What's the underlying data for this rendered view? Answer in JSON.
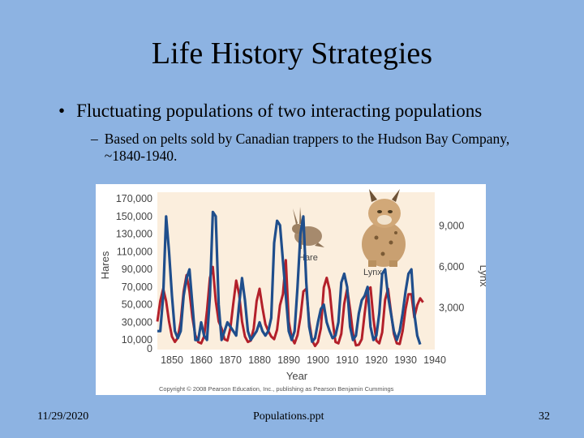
{
  "slide": {
    "title": "Life History Strategies",
    "bullet": "Fluctuating populations of two interacting populations",
    "bullet_marker": "•",
    "sub_marker": "–",
    "sub_bullet": "Based on pelts sold by Canadian trappers to the Hudson Bay Company, ~1840-1940."
  },
  "footer": {
    "date": "11/29/2020",
    "file": "Populations.ppt",
    "page": "32"
  },
  "colors": {
    "background": "#8db3e2",
    "hare": "#1f4e8c",
    "lynx": "#b3202a"
  },
  "chart_data": {
    "type": "line",
    "xlabel": "Year",
    "ylabel_left": "Hares",
    "ylabel_right": "Lynx",
    "xlim": [
      1845,
      1940
    ],
    "ylim_left": [
      0,
      170000
    ],
    "ylim_right": [
      0,
      11000
    ],
    "x_ticks": [
      1850,
      1860,
      1870,
      1880,
      1890,
      1900,
      1910,
      1920,
      1930,
      1940
    ],
    "y_ticks_left": [
      0,
      10000,
      30000,
      50000,
      70000,
      90000,
      110000,
      130000,
      150000,
      170000
    ],
    "y_tick_labels_left": [
      "0",
      "10,000",
      "30,000",
      "50,000",
      "70,000",
      "90,000",
      "110,000",
      "130,000",
      "150,000",
      "170,000"
    ],
    "y_ticks_right": [
      3000,
      6000,
      9000
    ],
    "y_tick_labels_right": [
      "3,000",
      "6,000",
      "9,000"
    ],
    "series": [
      {
        "name": "Hare",
        "axis": "left",
        "color": "#1f4e8c",
        "x": [
          1845,
          1846,
          1847,
          1848,
          1849,
          1850,
          1851,
          1852,
          1853,
          1854,
          1855,
          1856,
          1857,
          1858,
          1859,
          1860,
          1861,
          1862,
          1863,
          1864,
          1865,
          1866,
          1867,
          1868,
          1869,
          1870,
          1871,
          1872,
          1873,
          1874,
          1875,
          1876,
          1877,
          1878,
          1879,
          1880,
          1881,
          1882,
          1883,
          1884,
          1885,
          1886,
          1887,
          1888,
          1889,
          1890,
          1891,
          1892,
          1893,
          1894,
          1895,
          1896,
          1897,
          1898,
          1899,
          1900,
          1901,
          1902,
          1903,
          1904,
          1905,
          1906,
          1907,
          1908,
          1909,
          1910,
          1911,
          1912,
          1913,
          1914,
          1915,
          1916,
          1917,
          1918,
          1919,
          1920,
          1921,
          1922,
          1923,
          1924,
          1925,
          1926,
          1927,
          1928,
          1929,
          1930,
          1931,
          1932,
          1933,
          1934,
          1935
        ],
        "y": [
          20000,
          20000,
          60000,
          150000,
          110000,
          60000,
          20000,
          12000,
          20000,
          60000,
          80000,
          90000,
          50000,
          10000,
          10000,
          30000,
          15000,
          10000,
          60000,
          155000,
          150000,
          50000,
          10000,
          20000,
          30000,
          25000,
          20000,
          15000,
          50000,
          80000,
          55000,
          20000,
          10000,
          15000,
          20000,
          30000,
          20000,
          15000,
          20000,
          35000,
          120000,
          145000,
          140000,
          100000,
          60000,
          20000,
          10000,
          20000,
          70000,
          130000,
          150000,
          75000,
          25000,
          8000,
          12000,
          30000,
          45000,
          50000,
          30000,
          20000,
          12000,
          15000,
          30000,
          75000,
          85000,
          70000,
          25000,
          10000,
          15000,
          40000,
          55000,
          60000,
          70000,
          25000,
          10000,
          15000,
          40000,
          85000,
          90000,
          60000,
          40000,
          20000,
          10000,
          20000,
          40000,
          65000,
          85000,
          90000,
          40000,
          15000,
          5000
        ]
      },
      {
        "name": "Lynx",
        "axis": "right",
        "color": "#b3202a",
        "x": [
          1845,
          1846,
          1847,
          1848,
          1849,
          1850,
          1851,
          1852,
          1853,
          1854,
          1855,
          1856,
          1857,
          1858,
          1859,
          1860,
          1861,
          1862,
          1863,
          1864,
          1865,
          1866,
          1867,
          1868,
          1869,
          1870,
          1871,
          1872,
          1873,
          1874,
          1875,
          1876,
          1877,
          1878,
          1879,
          1880,
          1881,
          1882,
          1883,
          1884,
          1885,
          1886,
          1887,
          1888,
          1889,
          1890,
          1891,
          1892,
          1893,
          1894,
          1895,
          1896,
          1897,
          1898,
          1899,
          1900,
          1901,
          1902,
          1903,
          1904,
          1905,
          1906,
          1907,
          1908,
          1909,
          1910,
          1911,
          1912,
          1913,
          1914,
          1915,
          1916,
          1917,
          1918,
          1919,
          1920,
          1921,
          1922,
          1923,
          1924,
          1925,
          1926,
          1927,
          1928,
          1929,
          1930,
          1931,
          1932,
          1933,
          1934,
          1935,
          1936
        ],
        "y": [
          2000,
          3500,
          4400,
          3500,
          2000,
          900,
          500,
          800,
          2000,
          4200,
          5400,
          4200,
          2300,
          1000,
          500,
          400,
          900,
          2800,
          5200,
          6000,
          3500,
          2000,
          1500,
          700,
          600,
          1500,
          3300,
          5000,
          4000,
          2000,
          900,
          500,
          600,
          1500,
          3500,
          4400,
          3000,
          1800,
          1300,
          900,
          700,
          1400,
          3200,
          4000,
          6500,
          2000,
          800,
          400,
          1000,
          2300,
          4200,
          4400,
          2000,
          600,
          200,
          500,
          1500,
          4500,
          5200,
          4300,
          2100,
          500,
          400,
          1100,
          3300,
          4400,
          2900,
          1100,
          250,
          300,
          700,
          2600,
          4300,
          4500,
          2200,
          600,
          400,
          1200,
          3600,
          4400,
          2700,
          1100,
          400,
          350,
          1300,
          2900,
          4000,
          4000,
          2300,
          3200,
          3700,
          3400
        ]
      }
    ],
    "annotations": [
      "Hare",
      "Lynx"
    ],
    "credit": "Copyright © 2008 Pearson Education, Inc., publishing as Pearson Benjamin Cummings",
    "images": [
      "hare-illustration",
      "lynx-illustration"
    ]
  }
}
